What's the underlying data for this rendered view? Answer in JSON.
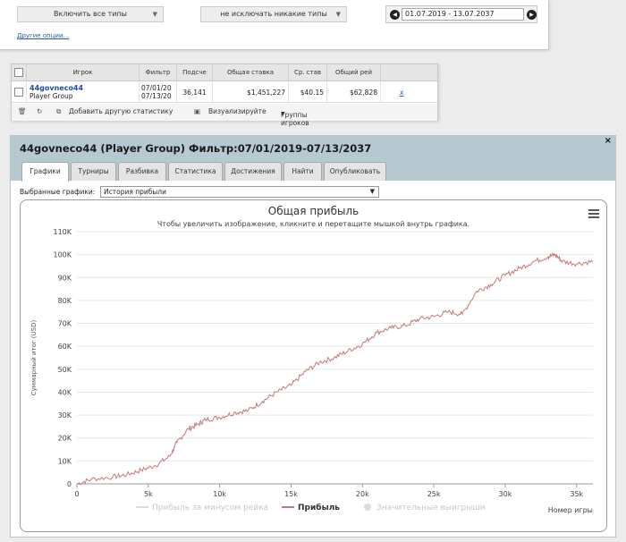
{
  "filters": {
    "include_types": "Включить все типы",
    "exclude_types": "не исключать никакие типы",
    "date_range": "01.07.2019 - 13.07.2037",
    "other_options": "Другие опции..."
  },
  "table": {
    "headers": [
      "Игрок",
      "Фильтр",
      "Подсче",
      "Общая ставка",
      "Ср. став",
      "Общий рей"
    ],
    "row": {
      "player": "44govneco44",
      "group": "Player Group",
      "filter_from": "07/01/20",
      "filter_to": "07/13/20",
      "hands": "36,141",
      "total_bet": "$1,451,227",
      "avg_bet": "$40.15",
      "total_rake": "$62,828",
      "remove": "x"
    },
    "footer": {
      "add_stat": "Добавить другую статистику",
      "visualize": "Визуализируйте",
      "groups": "Группы игроков"
    }
  },
  "panel": {
    "title": "44govneco44 (Player Group) Фильтр:07/01/2019-07/13/2037",
    "close": "×",
    "tabs": [
      "Графики",
      "Турниры",
      "Разбивка",
      "Статистика",
      "Достижения",
      "Найти",
      "Опубликовать"
    ],
    "selected_label": "Выбранные графики:",
    "selected_value": "История прибыли"
  },
  "chart_data": {
    "type": "line",
    "title": "Общая прибыль",
    "subtitle": "Чтобы увеличить изображение, кликните и перетащите мышкой внутрь графика.",
    "ylabel": "Суммарный итог (USD)",
    "xlabel": "Номер игры",
    "xlim": [
      0,
      36141
    ],
    "ylim": [
      0,
      110000
    ],
    "xticks": [
      "0",
      "5k",
      "10k",
      "15k",
      "20k",
      "25k",
      "30k",
      "35k"
    ],
    "yticks": [
      "0",
      "10K",
      "20K",
      "30K",
      "40K",
      "50K",
      "60K",
      "70K",
      "80K",
      "90K",
      "100K",
      "110K"
    ],
    "legend": [
      "Прибыль за минусом рейка",
      "Прибыль",
      "Значительные выигрыши"
    ],
    "legend_position": "bottom",
    "series": [
      {
        "name": "Прибыль",
        "color": "#c87878",
        "x": [
          0,
          1000,
          2500,
          3500,
          4500,
          5500,
          6500,
          7000,
          7800,
          8500,
          9000,
          10000,
          11000,
          12000,
          13000,
          14000,
          15000,
          16000,
          17000,
          18000,
          19000,
          20000,
          21000,
          22000,
          23000,
          24000,
          25000,
          26000,
          27000,
          28000,
          29000,
          30000,
          31000,
          32000,
          33000,
          33500,
          34000,
          35000,
          36141
        ],
        "y": [
          0,
          2000,
          3000,
          4000,
          6000,
          8000,
          12000,
          18000,
          24000,
          26000,
          28000,
          29000,
          31000,
          32000,
          36000,
          40000,
          43000,
          49000,
          53000,
          55000,
          58000,
          61000,
          66000,
          68000,
          69000,
          72000,
          73000,
          75000,
          74000,
          84000,
          87000,
          91000,
          94000,
          97000,
          99000,
          100000,
          97000,
          96000,
          97000
        ]
      }
    ]
  }
}
